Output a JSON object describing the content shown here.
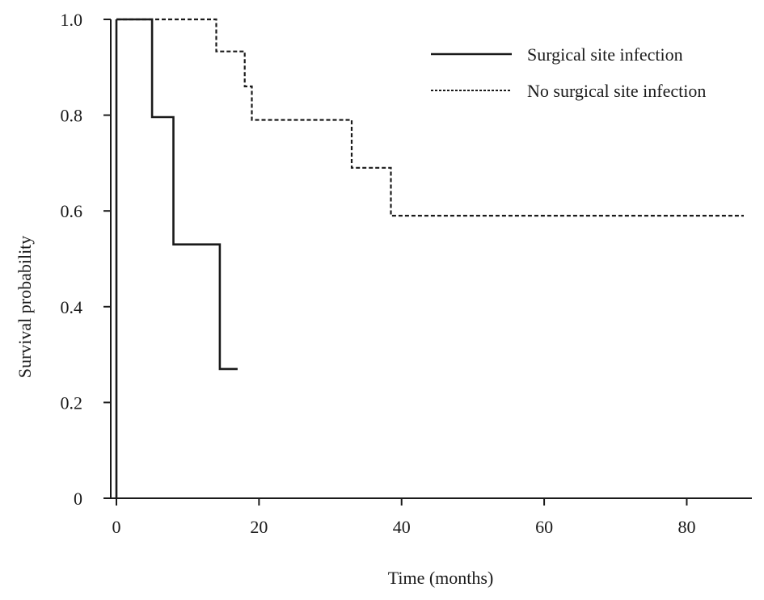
{
  "chart_data": {
    "type": "line",
    "subtype": "kaplan-meier step",
    "xlabel": "Time (months)",
    "ylabel": "Survival probability",
    "xlim": [
      0,
      88
    ],
    "ylim": [
      0,
      1.0
    ],
    "x_ticks": [
      0,
      20,
      40,
      60,
      80
    ],
    "x_tick_labels": [
      "0",
      "20",
      "40",
      "60",
      "80"
    ],
    "y_ticks": [
      0,
      0.2,
      0.4,
      0.6,
      0.8,
      1.0
    ],
    "y_tick_labels": [
      "0",
      "0.2",
      "0.4",
      "0.6",
      "0.8",
      "1.0"
    ],
    "grid": false,
    "legend_position": "top-right",
    "series": [
      {
        "name": "Surgical site infection",
        "style": "solid",
        "color": "#1a1a1a",
        "x": [
          0,
          5,
          5,
          8,
          8,
          14.5,
          14.5,
          17
        ],
        "y": [
          1.0,
          1.0,
          0.796,
          0.796,
          0.53,
          0.53,
          0.27,
          0.27
        ]
      },
      {
        "name": "No surgical site infection",
        "style": "dashed",
        "color": "#1a1a1a",
        "x": [
          0,
          14,
          14,
          18,
          18,
          19,
          19,
          33,
          33,
          38.5,
          38.5,
          88
        ],
        "y": [
          1.0,
          1.0,
          0.933,
          0.933,
          0.86,
          0.86,
          0.79,
          0.79,
          0.69,
          0.69,
          0.59,
          0.59
        ]
      }
    ]
  }
}
